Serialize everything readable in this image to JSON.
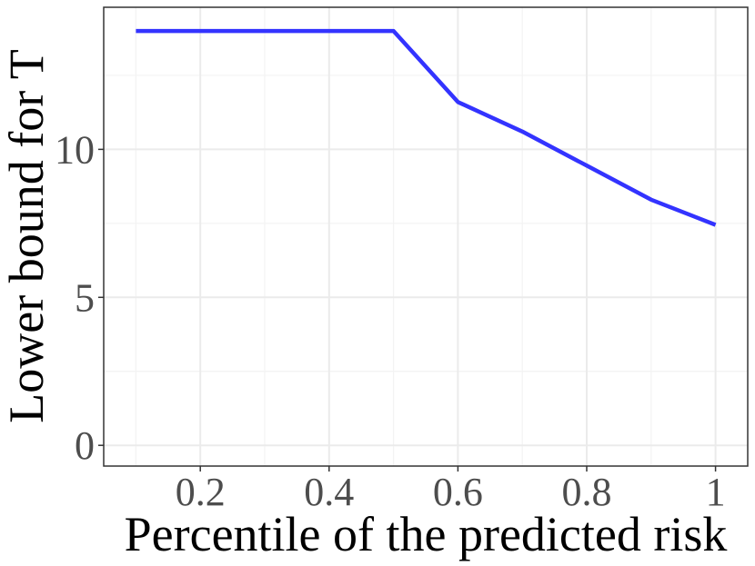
{
  "chart_data": {
    "type": "line",
    "xlabel": "Percentile of the predicted risk",
    "ylabel": "Lower bound for T",
    "xlim": [
      0.05,
      1.05
    ],
    "ylim": [
      -0.7,
      14.8
    ],
    "x_ticks": [
      0.2,
      0.4,
      0.6,
      0.8,
      1.0
    ],
    "x_tick_labels": [
      "0.2",
      "0.4",
      "0.6",
      "0.8",
      "1"
    ],
    "y_ticks": [
      0,
      5,
      10
    ],
    "y_tick_labels": [
      "0",
      "5",
      "10"
    ],
    "grid": true,
    "series": [
      {
        "color": "#3333ff",
        "x": [
          0.1,
          0.2,
          0.3,
          0.4,
          0.5,
          0.6,
          0.7,
          0.8,
          0.9,
          1.0
        ],
        "y": [
          14.0,
          14.0,
          14.0,
          14.0,
          14.0,
          11.6,
          10.6,
          9.45,
          8.3,
          7.45
        ]
      }
    ]
  }
}
